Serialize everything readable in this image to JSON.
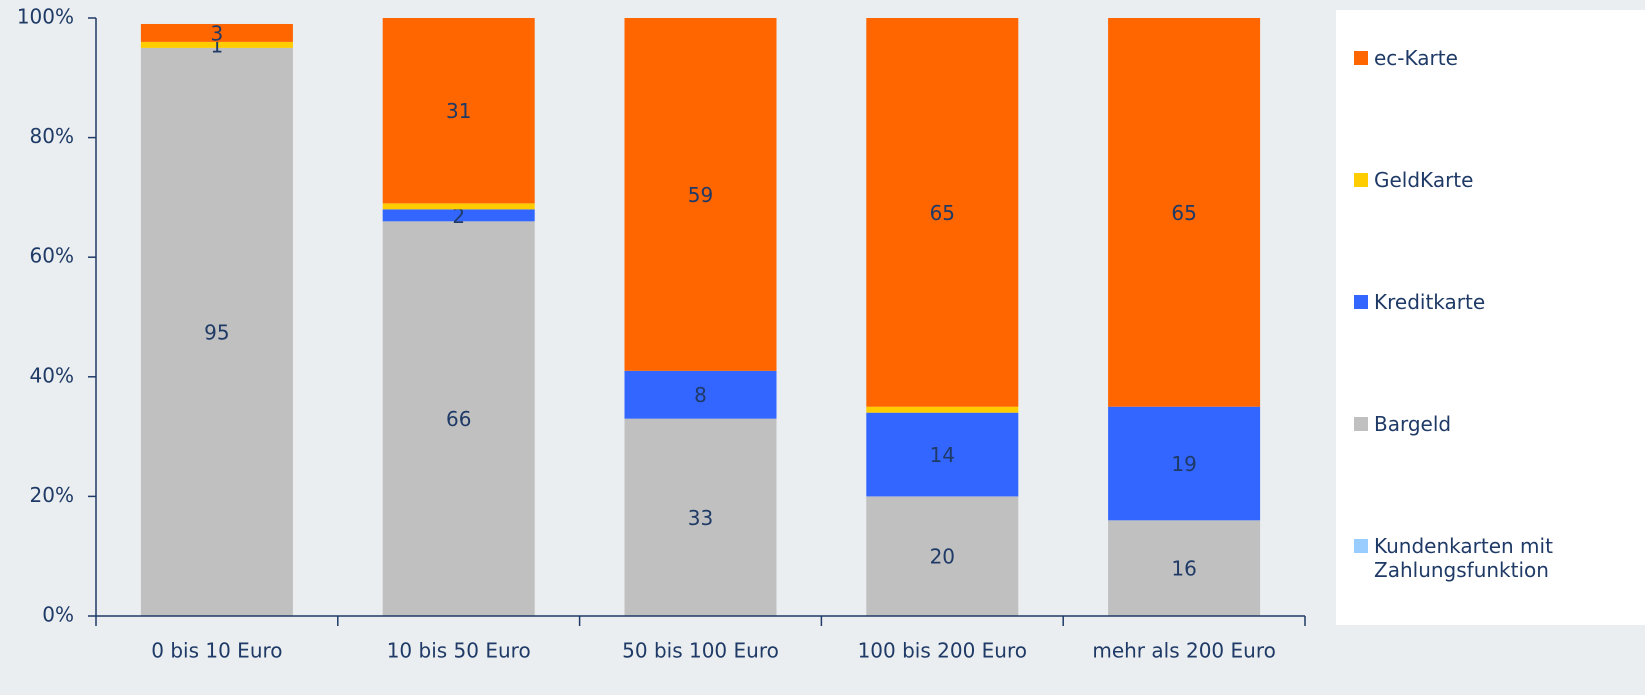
{
  "chart_data": {
    "type": "stacked_bar_100",
    "categories": [
      "0 bis 10 Euro",
      "10 bis 50 Euro",
      "50 bis 100 Euro",
      "100 bis 200 Euro",
      "mehr als 200 Euro"
    ],
    "series": [
      {
        "name": "Bargeld",
        "color": "#c0c0c0",
        "values": [
          95,
          66,
          33,
          20,
          16
        ],
        "value_labels": [
          "95",
          "66",
          "33",
          "20",
          "16"
        ]
      },
      {
        "name": "Kreditkarte",
        "color": "#3366ff",
        "values": [
          0,
          2,
          8,
          14,
          19
        ],
        "value_labels": [
          null,
          "2",
          "8",
          "14",
          "19"
        ]
      },
      {
        "name": "GeldKarte",
        "color": "#ffcc00",
        "values": [
          1,
          1,
          0,
          1,
          0
        ],
        "value_labels": [
          "1",
          null,
          null,
          null,
          null
        ]
      },
      {
        "name": "ec-Karte",
        "color": "#ff6600",
        "values": [
          3,
          31,
          59,
          65,
          65
        ],
        "value_labels": [
          "3",
          "31",
          "59",
          "65",
          "65"
        ]
      },
      {
        "name": "Kundenkarten mit Zahlungsfunktion",
        "color": "#99ccff",
        "values": [
          0,
          0,
          0,
          0,
          0
        ],
        "value_labels": [
          null,
          null,
          null,
          null,
          null
        ]
      }
    ],
    "ylim": [
      0,
      100
    ],
    "yticks": [
      {
        "value": 0,
        "label": "0%"
      },
      {
        "value": 20,
        "label": "20%"
      },
      {
        "value": 40,
        "label": "40%"
      },
      {
        "value": 60,
        "label": "60%"
      },
      {
        "value": 80,
        "label": "80%"
      },
      {
        "value": 100,
        "label": "100%"
      }
    ],
    "legend": "right"
  }
}
